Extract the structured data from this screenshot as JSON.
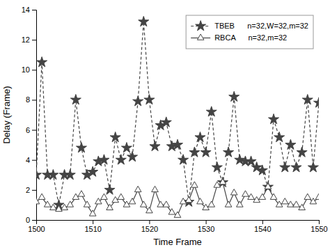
{
  "chart_data": {
    "type": "line",
    "x": [
      1500,
      1501,
      1502,
      1503,
      1504,
      1505,
      1506,
      1507,
      1508,
      1509,
      1510,
      1511,
      1512,
      1513,
      1514,
      1515,
      1516,
      1517,
      1518,
      1519,
      1520,
      1521,
      1522,
      1523,
      1524,
      1525,
      1526,
      1527,
      1528,
      1529,
      1530,
      1531,
      1532,
      1533,
      1534,
      1535,
      1536,
      1537,
      1538,
      1539,
      1540,
      1541,
      1542,
      1543,
      1544,
      1545,
      1546,
      1547,
      1548,
      1549,
      1550
    ],
    "series": [
      {
        "name": "TBEB      n=32,W=32,m=32",
        "color": "#444444",
        "marker": "star",
        "line_style": "dashed",
        "values": [
          3.0,
          10.5,
          3.0,
          3.0,
          1.0,
          3.0,
          3.0,
          8.0,
          4.8,
          3.0,
          3.2,
          3.9,
          4.0,
          2.0,
          5.5,
          4.0,
          4.8,
          4.2,
          7.9,
          13.2,
          8.0,
          4.9,
          6.3,
          6.5,
          4.9,
          5.0,
          4.0,
          1.2,
          4.5,
          5.5,
          4.5,
          7.2,
          3.5,
          2.5,
          4.5,
          8.2,
          4.0,
          3.9,
          3.9,
          3.5,
          3.3,
          2.2,
          6.7,
          5.5,
          3.5,
          5.0,
          3.5,
          4.5,
          8.0,
          3.5,
          7.8
        ]
      },
      {
        "name": "RBCA      n=32,m=32",
        "color": "#444444",
        "marker": "triangle",
        "line_style": "solid",
        "values": [
          1.2,
          1.5,
          1.0,
          0.8,
          0.7,
          0.8,
          1.0,
          1.5,
          1.7,
          1.0,
          0.4,
          1.2,
          1.5,
          0.8,
          1.3,
          1.5,
          1.0,
          1.2,
          2.0,
          1.0,
          0.6,
          2.0,
          1.0,
          1.0,
          0.5,
          0.3,
          1.2,
          1.3,
          2.3,
          1.2,
          0.8,
          1.0,
          2.3,
          2.5,
          1.0,
          1.8,
          1.0,
          1.7,
          1.5,
          1.3,
          1.5,
          2.2,
          1.5,
          1.0,
          1.2,
          1.0,
          1.0,
          0.8,
          1.5,
          1.2,
          1.5
        ]
      }
    ],
    "xlim": [
      1500,
      1550
    ],
    "ylim": [
      0,
      14
    ],
    "xticks": [
      1500,
      1510,
      1520,
      1530,
      1540,
      1550
    ],
    "yticks": [
      0,
      2,
      4,
      6,
      8,
      10,
      12,
      14
    ],
    "xlabel": "Time Frame",
    "ylabel": "Delay (Frame)",
    "legend": "upper right",
    "grid": false
  }
}
